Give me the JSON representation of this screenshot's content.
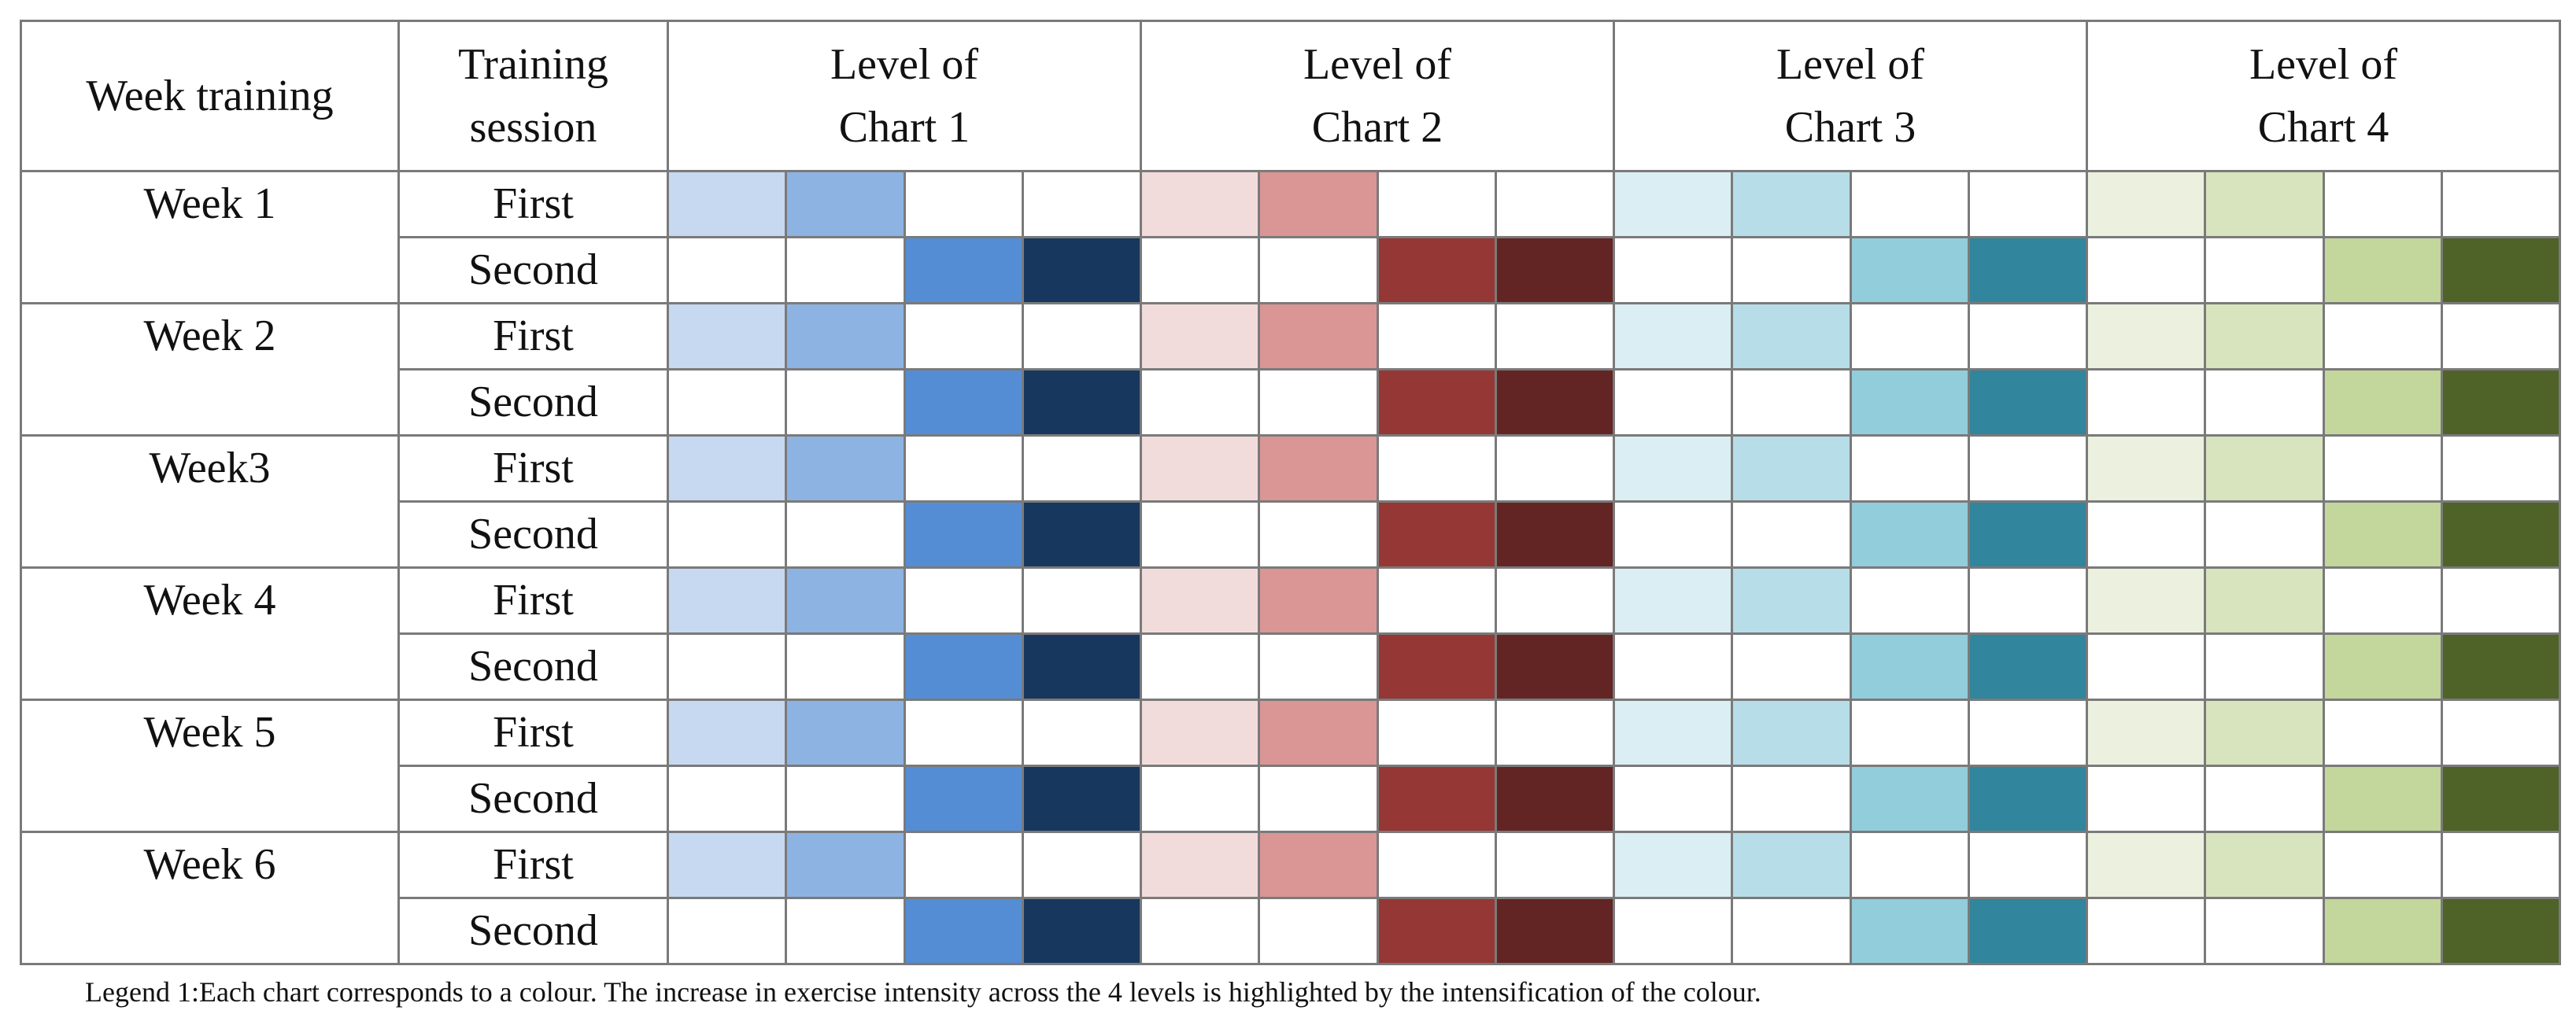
{
  "table": {
    "headers": [
      [
        "Week training"
      ],
      [
        "Training",
        "session"
      ],
      [
        "Level of",
        "Chart 1"
      ],
      [
        "Level of",
        "Chart 2"
      ],
      [
        "Level of",
        "Chart 3"
      ],
      [
        "Level of",
        "Chart 4"
      ]
    ],
    "rows": [
      {
        "week": "Week 1",
        "sessions": [
          "First",
          "Second"
        ]
      },
      {
        "week": "Week 2",
        "sessions": [
          "First",
          "Second"
        ]
      },
      {
        "week": "Week3",
        "sessions": [
          "First",
          "Second"
        ]
      },
      {
        "week": "Week 4",
        "sessions": [
          "First",
          "Second"
        ]
      },
      {
        "week": "Week 5",
        "sessions": [
          "First",
          "Second"
        ]
      },
      {
        "week": "Week 6",
        "sessions": [
          "First",
          "Second"
        ]
      }
    ],
    "level_colors": [
      [
        "#c6d9f1",
        "#8db3e2",
        "#548dd4",
        "#17375e"
      ],
      [
        "#f2dcdb",
        "#d99694",
        "#953735",
        "#632523"
      ],
      [
        "#dbeef4",
        "#b7dee8",
        "#92cddc",
        "#31859c"
      ],
      [
        "#ebf1de",
        "#d7e4bd",
        "#c3d69b",
        "#4f6228"
      ]
    ]
  },
  "legend": "Legend 1:Each chart corresponds to a colour. The increase in exercise intensity across the 4 levels is highlighted by the intensification of the colour."
}
